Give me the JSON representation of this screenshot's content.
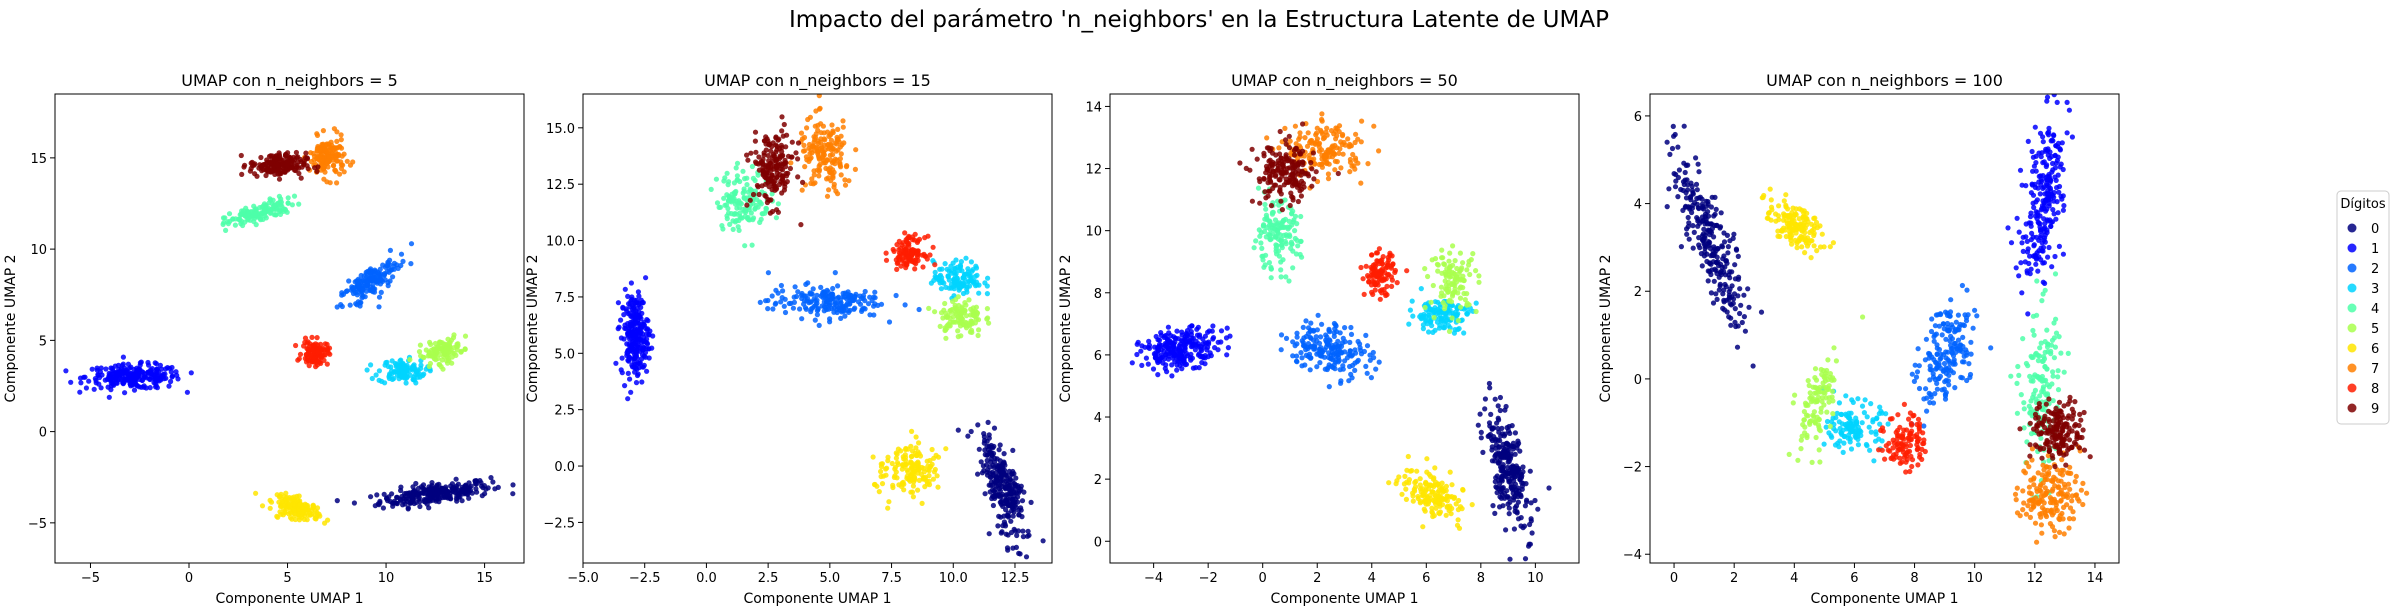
{
  "figure_title": "Impacto del parámetro 'n_neighbors' en la Estructura Latente de UMAP",
  "legend": {
    "title": "Dígitos",
    "labels": [
      "0",
      "1",
      "2",
      "3",
      "4",
      "5",
      "6",
      "7",
      "8",
      "9"
    ],
    "colors": [
      "#00007f",
      "#0000ff",
      "#0063ff",
      "#00d4ff",
      "#4effa9",
      "#a9ff4e",
      "#ffe500",
      "#ff7f00",
      "#ff1d00",
      "#7f0000"
    ]
  },
  "chart_data": [
    {
      "type": "scatter",
      "title": "UMAP con n_neighbors = 5",
      "xlabel": "Componente UMAP 1",
      "ylabel": "Componente UMAP 2",
      "xlim": [
        -6.8,
        17.0
      ],
      "ylim": [
        -7.2,
        18.5
      ],
      "xticks": [
        -5,
        0,
        5,
        10,
        15
      ],
      "yticks": [
        -5,
        0,
        5,
        10,
        15
      ],
      "tick_labels_x": [
        "−5",
        "0",
        "5",
        "10",
        "15"
      ],
      "tick_labels_y": [
        "−5",
        "0",
        "5",
        "10",
        "15"
      ],
      "clusters": [
        {
          "digit": "0",
          "center": [
            12.5,
            -3.4
          ],
          "spread": [
            2.6,
            0.5
          ],
          "angle": 8,
          "n": 260
        },
        {
          "digit": "1",
          "center": [
            -2.8,
            3.0
          ],
          "spread": [
            2.2,
            0.6
          ],
          "angle": 0,
          "n": 240
        },
        {
          "digit": "2",
          "center": [
            9.2,
            8.2
          ],
          "spread": [
            1.7,
            0.6
          ],
          "angle": 40,
          "n": 170
        },
        {
          "digit": "3",
          "center": [
            10.8,
            3.3
          ],
          "spread": [
            1.1,
            0.6
          ],
          "angle": 0,
          "n": 110
        },
        {
          "digit": "4",
          "center": [
            3.6,
            12.0
          ],
          "spread": [
            1.6,
            0.45
          ],
          "angle": 20,
          "n": 140
        },
        {
          "digit": "5",
          "center": [
            12.8,
            4.4
          ],
          "spread": [
            1.0,
            0.55
          ],
          "angle": 20,
          "n": 110
        },
        {
          "digit": "6",
          "center": [
            5.5,
            -4.2
          ],
          "spread": [
            1.1,
            0.5
          ],
          "angle": -20,
          "n": 150
        },
        {
          "digit": "7",
          "center": [
            7.0,
            15.0
          ],
          "spread": [
            0.8,
            1.0
          ],
          "angle": 0,
          "n": 150
        },
        {
          "digit": "8",
          "center": [
            6.4,
            4.3
          ],
          "spread": [
            0.6,
            0.6
          ],
          "angle": 0,
          "n": 110
        },
        {
          "digit": "9",
          "center": [
            4.5,
            14.6
          ],
          "spread": [
            1.3,
            0.6
          ],
          "angle": 0,
          "n": 170
        }
      ]
    },
    {
      "type": "scatter",
      "title": "UMAP con n_neighbors = 15",
      "xlabel": "Componente UMAP 1",
      "ylabel": "Componente UMAP 2",
      "xlim": [
        -5.0,
        14.0
      ],
      "ylim": [
        -4.3,
        16.5
      ],
      "xticks": [
        -5.0,
        -2.5,
        0.0,
        2.5,
        5.0,
        7.5,
        10.0,
        12.5
      ],
      "yticks": [
        -2.5,
        0.0,
        2.5,
        5.0,
        7.5,
        10.0,
        12.5,
        15.0
      ],
      "tick_labels_x": [
        "−5.0",
        "−2.5",
        "0.0",
        "2.5",
        "5.0",
        "7.5",
        "10.0",
        "12.5"
      ],
      "tick_labels_y": [
        "−2.5",
        "0.0",
        "2.5",
        "5.0",
        "7.5",
        "10.0",
        "12.5",
        "15.0"
      ],
      "clusters": [
        {
          "digit": "0",
          "center": [
            12.0,
            -0.8
          ],
          "spread": [
            0.6,
            2.4
          ],
          "angle": 15,
          "n": 260
        },
        {
          "digit": "1",
          "center": [
            -2.9,
            5.8
          ],
          "spread": [
            0.5,
            1.7
          ],
          "angle": 0,
          "n": 240
        },
        {
          "digit": "2",
          "center": [
            4.8,
            7.3
          ],
          "spread": [
            2.1,
            0.65
          ],
          "angle": 0,
          "n": 190
        },
        {
          "digit": "3",
          "center": [
            10.2,
            8.3
          ],
          "spread": [
            0.9,
            0.7
          ],
          "angle": 0,
          "n": 120
        },
        {
          "digit": "4",
          "center": [
            1.5,
            11.8
          ],
          "spread": [
            1.0,
            1.2
          ],
          "angle": 0,
          "n": 140
        },
        {
          "digit": "5",
          "center": [
            10.3,
            6.6
          ],
          "spread": [
            0.8,
            0.8
          ],
          "angle": 0,
          "n": 110
        },
        {
          "digit": "6",
          "center": [
            8.3,
            -0.2
          ],
          "spread": [
            1.0,
            1.1
          ],
          "angle": -40,
          "n": 150
        },
        {
          "digit": "7",
          "center": [
            4.8,
            13.7
          ],
          "spread": [
            1.0,
            1.5
          ],
          "angle": 0,
          "n": 160
        },
        {
          "digit": "8",
          "center": [
            8.2,
            9.5
          ],
          "spread": [
            0.6,
            0.6
          ],
          "angle": 0,
          "n": 110
        },
        {
          "digit": "9",
          "center": [
            2.7,
            13.2
          ],
          "spread": [
            0.8,
            1.5
          ],
          "angle": 0,
          "n": 180
        }
      ]
    },
    {
      "type": "scatter",
      "title": "UMAP con n_neighbors = 50",
      "xlabel": "Componente UMAP 1",
      "ylabel": "Componente UMAP 2",
      "xlim": [
        -5.6,
        11.6
      ],
      "ylim": [
        -0.7,
        14.4
      ],
      "xticks": [
        -4,
        -2,
        0,
        2,
        4,
        6,
        8,
        10
      ],
      "yticks": [
        0,
        2,
        4,
        6,
        8,
        10,
        12,
        14
      ],
      "tick_labels_x": [
        "−4",
        "−2",
        "0",
        "2",
        "4",
        "6",
        "8",
        "10"
      ],
      "tick_labels_y": [
        "0",
        "2",
        "4",
        "6",
        "8",
        "10",
        "12",
        "14"
      ],
      "clusters": [
        {
          "digit": "0",
          "center": [
            9.0,
            2.3
          ],
          "spread": [
            0.55,
            1.9
          ],
          "angle": 15,
          "n": 260
        },
        {
          "digit": "1",
          "center": [
            -3.0,
            6.2
          ],
          "spread": [
            1.3,
            0.55
          ],
          "angle": 8,
          "n": 240
        },
        {
          "digit": "2",
          "center": [
            2.5,
            6.2
          ],
          "spread": [
            1.4,
            0.75
          ],
          "angle": -10,
          "n": 190
        },
        {
          "digit": "3",
          "center": [
            6.5,
            7.3
          ],
          "spread": [
            1.0,
            0.5
          ],
          "angle": 0,
          "n": 120
        },
        {
          "digit": "4",
          "center": [
            0.5,
            9.8
          ],
          "spread": [
            0.8,
            1.0
          ],
          "angle": 0,
          "n": 140
        },
        {
          "digit": "5",
          "center": [
            7.0,
            8.4
          ],
          "spread": [
            0.8,
            0.9
          ],
          "angle": 0,
          "n": 110
        },
        {
          "digit": "6",
          "center": [
            6.3,
            1.5
          ],
          "spread": [
            1.2,
            0.6
          ],
          "angle": -25,
          "n": 150
        },
        {
          "digit": "7",
          "center": [
            2.3,
            12.6
          ],
          "spread": [
            1.3,
            0.8
          ],
          "angle": 0,
          "n": 160
        },
        {
          "digit": "8",
          "center": [
            4.3,
            8.6
          ],
          "spread": [
            0.5,
            0.6
          ],
          "angle": 0,
          "n": 110
        },
        {
          "digit": "9",
          "center": [
            0.8,
            11.8
          ],
          "spread": [
            1.0,
            0.9
          ],
          "angle": 0,
          "n": 180
        }
      ]
    },
    {
      "type": "scatter",
      "title": "UMAP con n_neighbors = 100",
      "xlabel": "Componente UMAP 1",
      "ylabel": "Componente UMAP 2",
      "xlim": [
        -0.8,
        14.8
      ],
      "ylim": [
        -4.2,
        6.5
      ],
      "xticks": [
        0,
        2,
        4,
        6,
        8,
        10,
        12,
        14
      ],
      "yticks": [
        -4,
        -2,
        0,
        2,
        4,
        6
      ],
      "tick_labels_x": [
        "0",
        "2",
        "4",
        "6",
        "8",
        "10",
        "12",
        "14"
      ],
      "tick_labels_y": [
        "−4",
        "−2",
        "0",
        "2",
        "4",
        "6"
      ],
      "clusters": [
        {
          "digit": "0",
          "center": [
            1.2,
            3.2
          ],
          "spread": [
            0.55,
            2.0
          ],
          "angle": 28,
          "n": 260
        },
        {
          "digit": "1",
          "center": [
            12.3,
            4.1
          ],
          "spread": [
            0.6,
            1.7
          ],
          "angle": -12,
          "n": 240
        },
        {
          "digit": "2",
          "center": [
            9.0,
            0.6
          ],
          "spread": [
            0.7,
            1.3
          ],
          "angle": -30,
          "n": 180
        },
        {
          "digit": "3",
          "center": [
            6.0,
            -1.1
          ],
          "spread": [
            0.8,
            0.5
          ],
          "angle": 0,
          "n": 120
        },
        {
          "digit": "4",
          "center": [
            12.2,
            -0.3
          ],
          "spread": [
            0.6,
            1.8
          ],
          "angle": 0,
          "n": 160
        },
        {
          "digit": "5",
          "center": [
            4.8,
            -0.5
          ],
          "spread": [
            0.5,
            1.0
          ],
          "angle": -25,
          "n": 110
        },
        {
          "digit": "6",
          "center": [
            4.0,
            3.5
          ],
          "spread": [
            0.9,
            0.4
          ],
          "angle": -20,
          "n": 150
        },
        {
          "digit": "7",
          "center": [
            12.5,
            -2.6
          ],
          "spread": [
            0.9,
            0.8
          ],
          "angle": 0,
          "n": 170
        },
        {
          "digit": "8",
          "center": [
            7.7,
            -1.4
          ],
          "spread": [
            0.6,
            0.6
          ],
          "angle": 0,
          "n": 110
        },
        {
          "digit": "9",
          "center": [
            12.8,
            -1.2
          ],
          "spread": [
            0.8,
            0.6
          ],
          "angle": 0,
          "n": 180
        }
      ]
    }
  ]
}
